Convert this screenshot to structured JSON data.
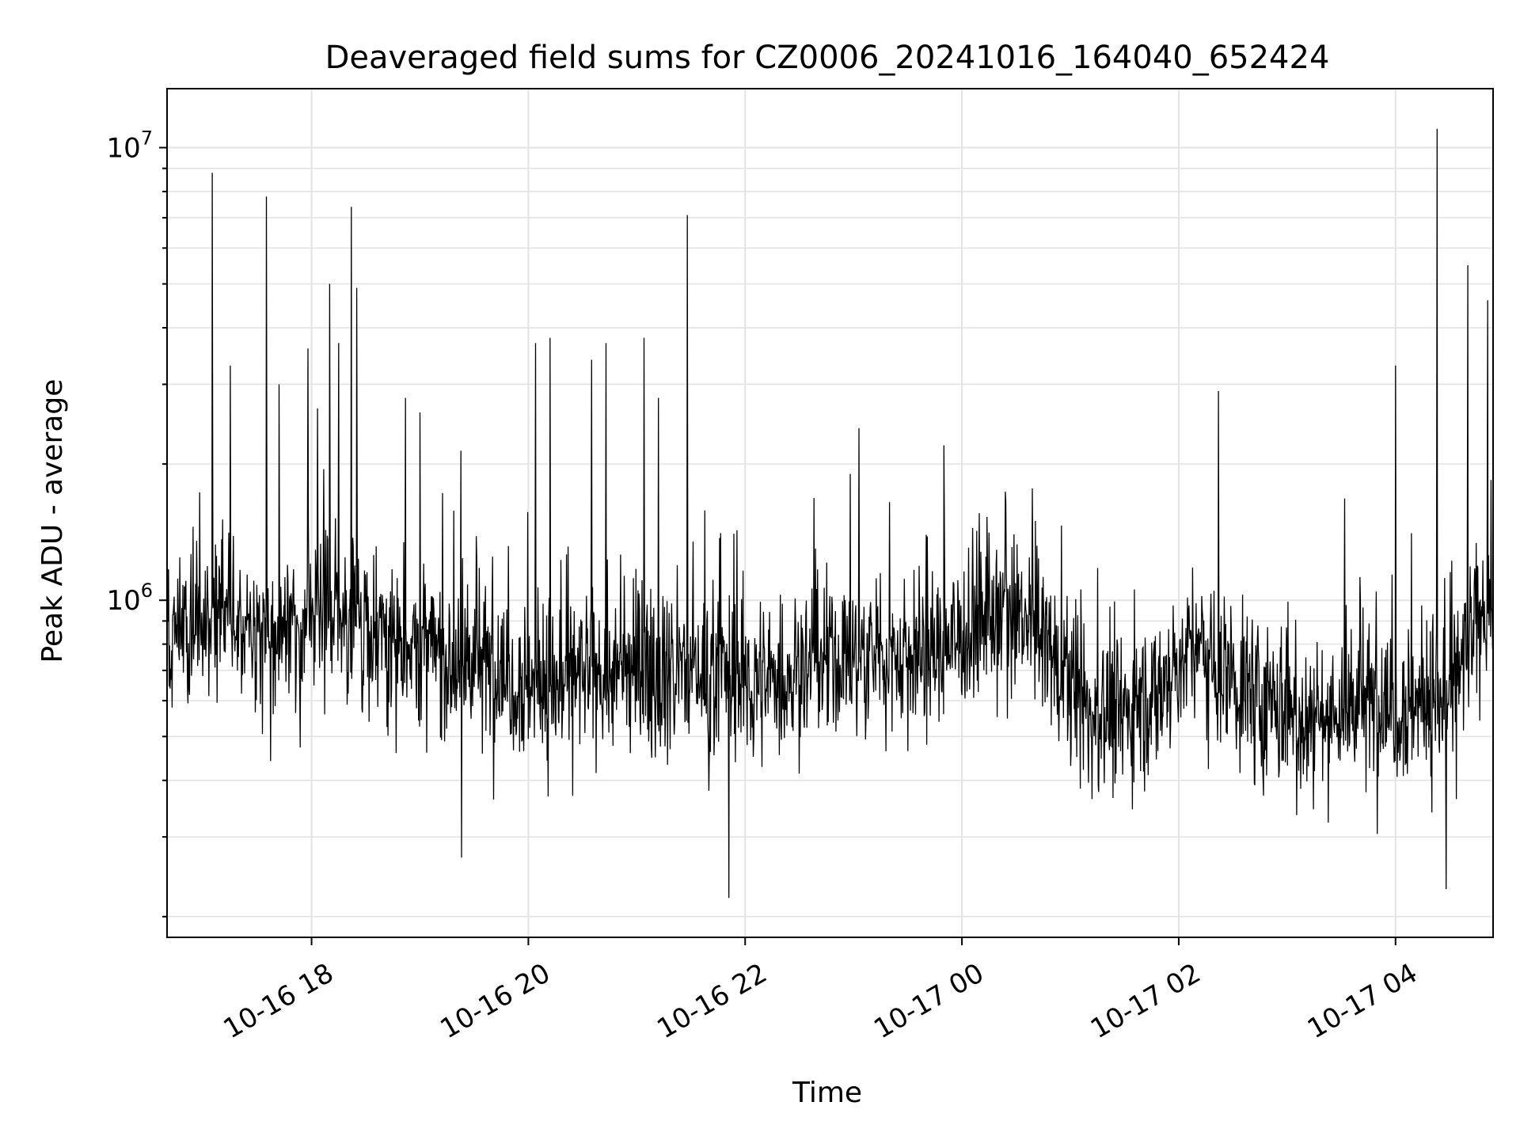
{
  "chart_data": {
    "type": "line",
    "title": "Deaveraged field sums for CZ0006_20241016_164040_652424",
    "xlabel": "Time",
    "ylabel": "Peak ADU - average",
    "yscale": "log",
    "ylim": [
      180000,
      13500000
    ],
    "xlim": [
      "2024-10-16T16:40",
      "2024-10-17T04:54"
    ],
    "grid": true,
    "line_color": "#000000",
    "x_ticks": [
      {
        "t": "2024-10-16T18:00",
        "label": "10-16 18"
      },
      {
        "t": "2024-10-16T20:00",
        "label": "10-16 20"
      },
      {
        "t": "2024-10-16T22:00",
        "label": "10-16 22"
      },
      {
        "t": "2024-10-17T00:00",
        "label": "10-17 00"
      },
      {
        "t": "2024-10-17T02:00",
        "label": "10-17 02"
      },
      {
        "t": "2024-10-17T04:00",
        "label": "10-17 04"
      }
    ],
    "y_ticks": [
      {
        "value": 1000000,
        "base": "10",
        "exp": "6"
      },
      {
        "value": 10000000,
        "base": "10",
        "exp": "7"
      }
    ],
    "baseline": {
      "t": [
        "2024-10-16T16:40",
        "2024-10-16T17:10",
        "2024-10-16T17:40",
        "2024-10-16T18:10",
        "2024-10-16T18:40",
        "2024-10-16T19:10",
        "2024-10-16T19:40",
        "2024-10-16T20:10",
        "2024-10-16T20:40",
        "2024-10-16T21:10",
        "2024-10-16T21:40",
        "2024-10-16T22:10",
        "2024-10-16T22:40",
        "2024-10-16T23:10",
        "2024-10-16T23:40",
        "2024-10-17T00:10",
        "2024-10-17T00:40",
        "2024-10-17T01:10",
        "2024-10-17T01:40",
        "2024-10-17T02:10",
        "2024-10-17T02:40",
        "2024-10-17T03:10",
        "2024-10-17T03:40",
        "2024-10-17T04:10",
        "2024-10-17T04:30",
        "2024-10-17T04:54"
      ],
      "value": [
        800000,
        900000,
        850000,
        950000,
        850000,
        750000,
        700000,
        650000,
        680000,
        700000,
        700000,
        650000,
        720000,
        750000,
        750000,
        900000,
        880000,
        550000,
        580000,
        800000,
        600000,
        550000,
        580000,
        600000,
        600000,
        1050000
      ]
    },
    "spikes": [
      {
        "t": "2024-10-16T17:05",
        "value": 8800000
      },
      {
        "t": "2024-10-16T17:35",
        "value": 7800000
      },
      {
        "t": "2024-10-16T17:42",
        "value": 3000000
      },
      {
        "t": "2024-10-16T17:15",
        "value": 3300000
      },
      {
        "t": "2024-10-16T17:58",
        "value": 3600000
      },
      {
        "t": "2024-10-16T18:10",
        "value": 5000000
      },
      {
        "t": "2024-10-16T18:15",
        "value": 3700000
      },
      {
        "t": "2024-10-16T18:22",
        "value": 7400000
      },
      {
        "t": "2024-10-16T18:25",
        "value": 4900000
      },
      {
        "t": "2024-10-16T18:52",
        "value": 2800000
      },
      {
        "t": "2024-10-16T19:00",
        "value": 2600000
      },
      {
        "t": "2024-10-16T19:23",
        "value": 270000
      },
      {
        "t": "2024-10-16T20:04",
        "value": 3700000
      },
      {
        "t": "2024-10-16T20:12",
        "value": 3800000
      },
      {
        "t": "2024-10-16T20:35",
        "value": 3400000
      },
      {
        "t": "2024-10-16T20:43",
        "value": 3700000
      },
      {
        "t": "2024-10-16T21:04",
        "value": 3800000
      },
      {
        "t": "2024-10-16T21:12",
        "value": 2800000
      },
      {
        "t": "2024-10-16T21:28",
        "value": 7100000
      },
      {
        "t": "2024-10-16T21:51",
        "value": 220000
      },
      {
        "t": "2024-10-16T23:03",
        "value": 2400000
      },
      {
        "t": "2024-10-16T23:50",
        "value": 2200000
      },
      {
        "t": "2024-10-17T02:22",
        "value": 2900000
      },
      {
        "t": "2024-10-17T04:00",
        "value": 3300000
      },
      {
        "t": "2024-10-17T04:23",
        "value": 11000000
      },
      {
        "t": "2024-10-17T04:28",
        "value": 230000
      },
      {
        "t": "2024-10-17T04:40",
        "value": 5500000
      },
      {
        "t": "2024-10-17T04:51",
        "value": 4600000
      }
    ]
  }
}
